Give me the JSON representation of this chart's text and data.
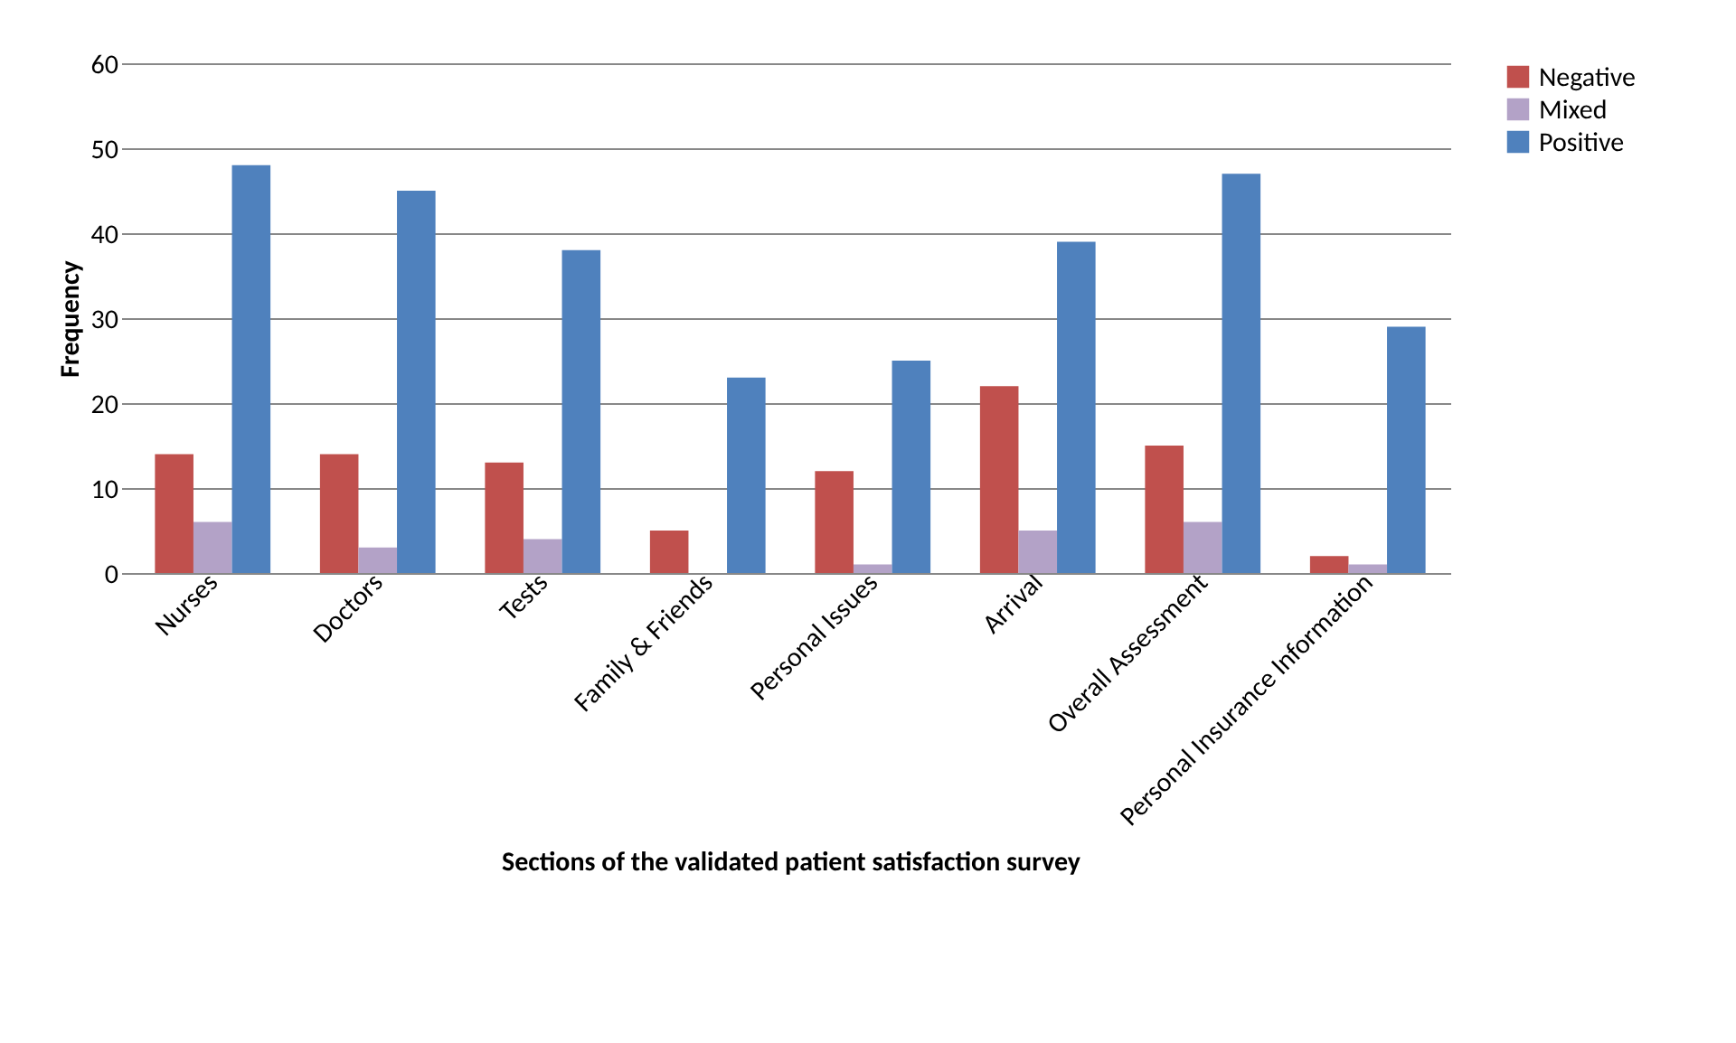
{
  "chart_data": {
    "type": "bar",
    "xlabel": "Sections of the validated patient satisfaction survey",
    "ylabel": "Frequency",
    "categories": [
      "Nurses",
      "Doctors",
      "Tests",
      "Family & Friends",
      "Personal Issues",
      "Arrival",
      "Overall Assessment",
      "Personal Insurance Information"
    ],
    "series": [
      {
        "name": "Negative",
        "color": "#c0504d",
        "values": [
          14,
          14,
          13,
          5,
          12,
          22,
          15,
          2
        ]
      },
      {
        "name": "Mixed",
        "color": "#b3a2c7",
        "values": [
          6,
          3,
          4,
          0,
          1,
          5,
          6,
          1
        ]
      },
      {
        "name": "Positive",
        "color": "#4f81bd",
        "values": [
          48,
          45,
          38,
          23,
          25,
          39,
          47,
          29
        ]
      }
    ],
    "ylim": [
      0,
      60
    ],
    "yticks": [
      0,
      10,
      20,
      30,
      40,
      50,
      60
    ],
    "grid": "y",
    "legend": "right"
  }
}
